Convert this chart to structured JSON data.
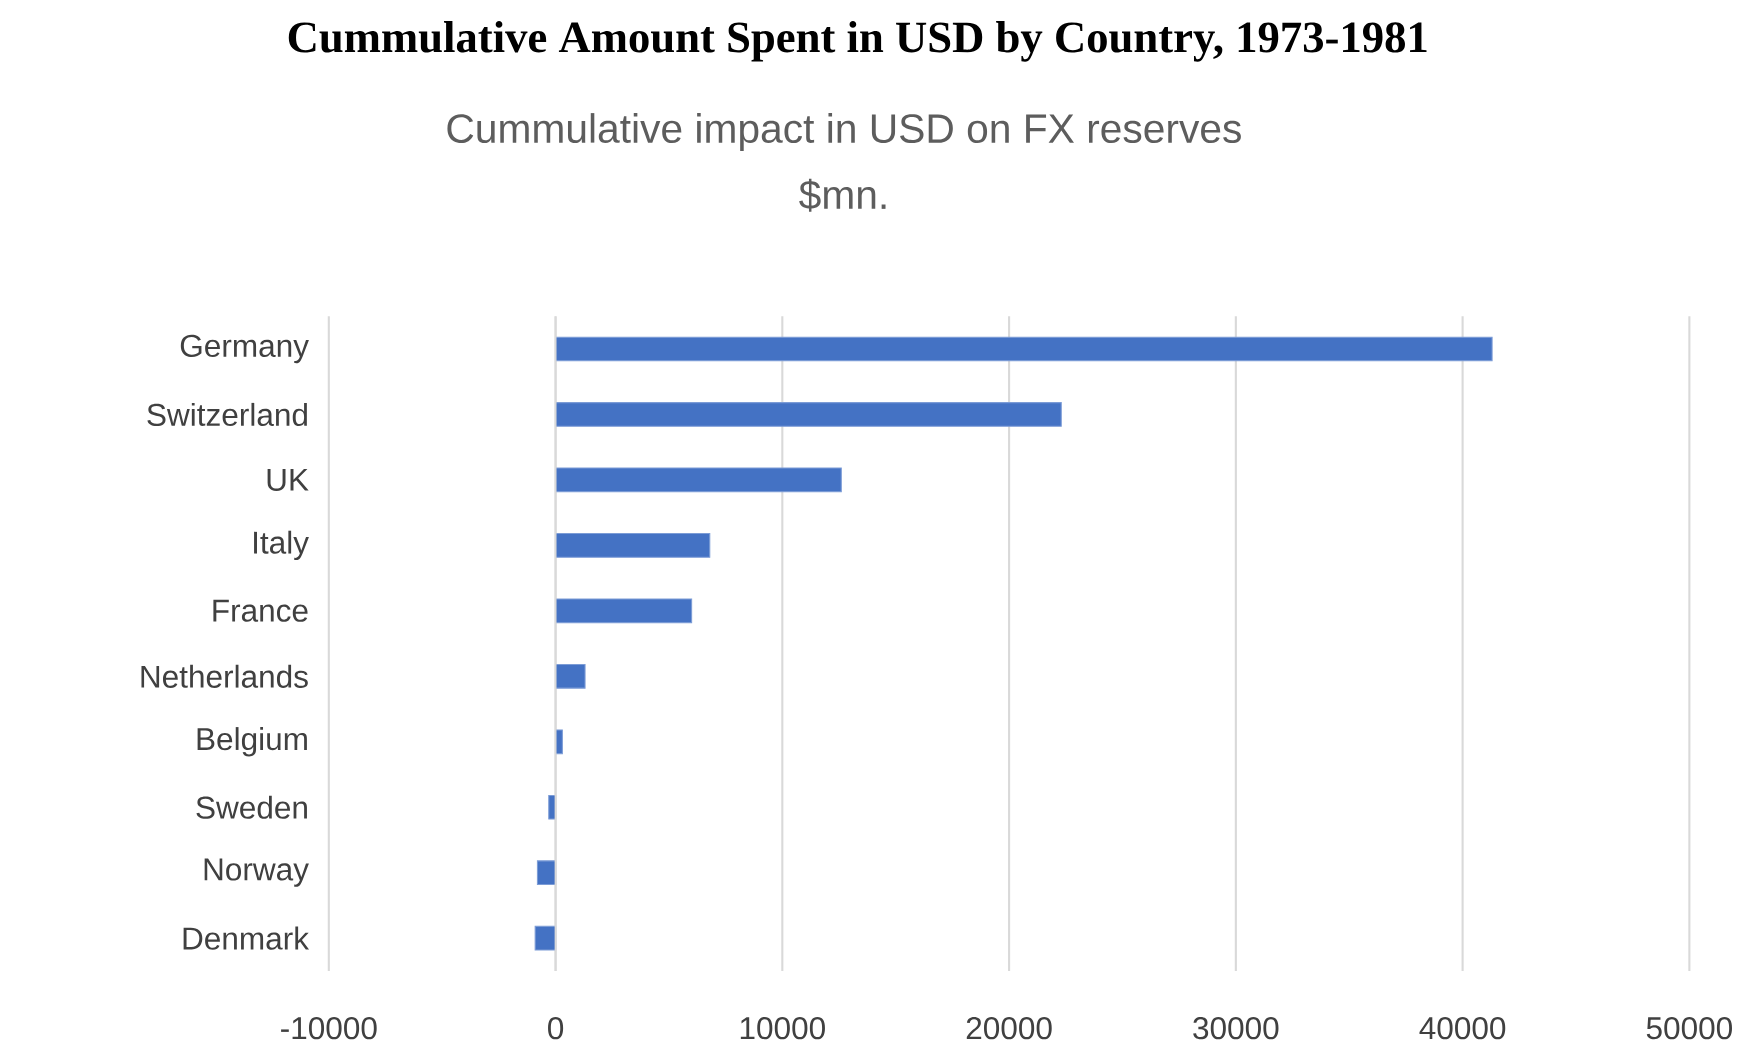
{
  "chart_data": {
    "type": "bar",
    "orientation": "horizontal",
    "title": "Cummulative Amount Spent in USD by Country, 1973-1981",
    "subtitle": "Cummulative impact in USD on FX reserves",
    "annotations": [
      "$mn."
    ],
    "categories": [
      "Germany",
      "Switzerland",
      "UK",
      "Italy",
      "France",
      "Netherlands",
      "Belgium",
      "Sweden",
      "Norway",
      "Denmark"
    ],
    "values": [
      41300,
      22300,
      12600,
      6800,
      6000,
      1300,
      300,
      -300,
      -800,
      -900
    ],
    "color": "#4472c4",
    "xlim": [
      -10000,
      50000
    ],
    "xticks": [
      -10000,
      0,
      10000,
      20000,
      30000,
      40000,
      50000
    ],
    "grid": "x"
  }
}
